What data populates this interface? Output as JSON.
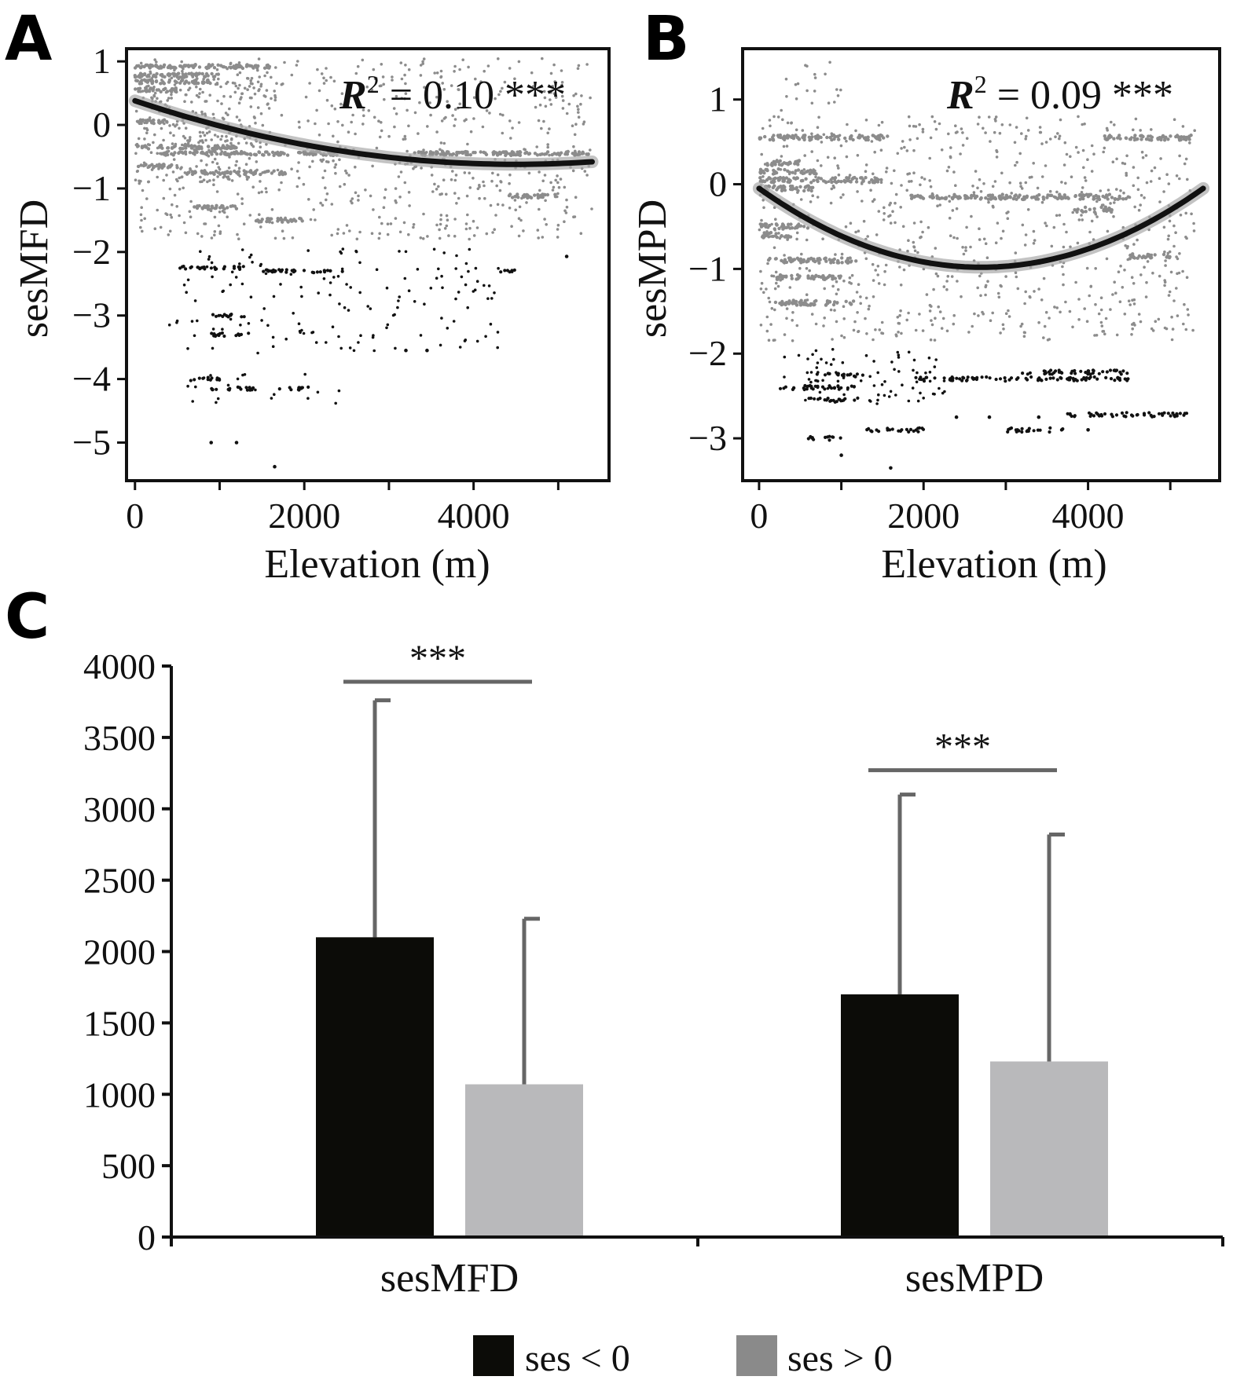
{
  "panels": {
    "a": {
      "letter": "A"
    },
    "b": {
      "letter": "B"
    },
    "c": {
      "letter": "C"
    }
  },
  "colors": {
    "neg": "#0c0c08",
    "pos": "#b9b9bb",
    "scatter_pos": "#8c8c8c",
    "scatter_neg": "#111111",
    "fit": "#111111",
    "ci": "#a9a9a9",
    "error_bar": "#666666",
    "legend_pos": "#8a8a8a"
  },
  "chart_data": [
    {
      "id": "A",
      "type": "scatter",
      "xlabel": "Elevation (m)",
      "ylabel": "sesMFD",
      "xlim": [
        -100,
        5600
      ],
      "ylim": [
        -5.6,
        1.2
      ],
      "xticks": [
        0,
        2000,
        4000
      ],
      "yticks": [
        1,
        0,
        -1,
        -2,
        -3,
        -4,
        -5
      ],
      "ytick_labels": [
        "1",
        "0",
        "−1",
        "−2",
        "−3",
        "−4",
        "−5"
      ],
      "annotation": {
        "r2": "R² = 0.10 ***",
        "r2_prefix": "R",
        "r2_sup": "2",
        "r2_value": " = 0.10 ***"
      },
      "fit": {
        "x_start": 0,
        "x_end": 5400,
        "y_at_start": 0.38,
        "y_at_min": -0.62,
        "x_at_min": 4500
      },
      "bands_pos": [
        {
          "y": 0.92,
          "x0": 0,
          "x1": 1600
        },
        {
          "y": 0.78,
          "x0": 0,
          "x1": 1000
        },
        {
          "y": 0.68,
          "x0": 0,
          "x1": 900
        },
        {
          "y": 0.55,
          "x0": 0,
          "x1": 500
        },
        {
          "y": 0.05,
          "x0": 0,
          "x1": 400
        },
        {
          "y": -0.35,
          "x0": 0,
          "x1": 1200
        },
        {
          "y": -0.45,
          "x0": 300,
          "x1": 2400
        },
        {
          "y": -0.65,
          "x0": 0,
          "x1": 500
        },
        {
          "y": -0.75,
          "x0": 600,
          "x1": 1800
        },
        {
          "y": -0.45,
          "x0": 3300,
          "x1": 5400
        },
        {
          "y": -1.12,
          "x0": 4400,
          "x1": 5000
        },
        {
          "y": -1.3,
          "x0": 700,
          "x1": 1200
        },
        {
          "y": -1.5,
          "x0": 1400,
          "x1": 2000
        }
      ],
      "clusters_pos": [
        {
          "x0": 0,
          "x1": 5400,
          "y0": -1.8,
          "y1": 1.05,
          "n": 700
        },
        {
          "x0": 0,
          "x1": 1500,
          "y0": -0.9,
          "y1": 1.0,
          "n": 250
        }
      ],
      "bands_neg": [
        {
          "y": -2.25,
          "x0": 500,
          "x1": 1300
        },
        {
          "y": -2.3,
          "x0": 1500,
          "x1": 2500
        },
        {
          "y": -3.0,
          "x0": 900,
          "x1": 1300
        },
        {
          "y": -3.3,
          "x0": 900,
          "x1": 1400
        },
        {
          "y": -4.0,
          "x0": 650,
          "x1": 1000
        },
        {
          "y": -4.15,
          "x0": 900,
          "x1": 1400
        },
        {
          "y": -4.15,
          "x0": 1700,
          "x1": 2100
        },
        {
          "y": -2.3,
          "x0": 4300,
          "x1": 4500
        }
      ],
      "clusters_neg": [
        {
          "x0": 400,
          "x1": 4300,
          "y0": -3.6,
          "y1": -1.95,
          "n": 150
        },
        {
          "x0": 600,
          "x1": 2500,
          "y0": -4.4,
          "y1": -3.9,
          "n": 20
        }
      ],
      "singles_neg": [
        [
          900,
          -5.0
        ],
        [
          1200,
          -5.0
        ],
        [
          1650,
          -5.38
        ],
        [
          5100,
          -2.07
        ],
        [
          3200,
          -3.55
        ],
        [
          3450,
          -3.55
        ]
      ]
    },
    {
      "id": "B",
      "type": "scatter",
      "xlabel": "Elevation (m)",
      "ylabel": "sesMPD",
      "xlim": [
        -200,
        5600
      ],
      "ylim": [
        -3.5,
        1.6
      ],
      "xticks": [
        0,
        2000,
        4000
      ],
      "yticks": [
        1,
        0,
        -1,
        -2,
        -3
      ],
      "ytick_labels": [
        "1",
        "0",
        "−1",
        "−2",
        "−3"
      ],
      "annotation": {
        "r2": "R² = 0.09 ***",
        "r2_prefix": "R",
        "r2_sup": "2",
        "r2_value": " = 0.09 ***"
      },
      "fit": {
        "x_start": 0,
        "x_end": 5400,
        "y_at_start": -0.05,
        "y_at_min": -0.98,
        "x_at_min": 2700
      },
      "bands_pos": [
        {
          "y": 0.55,
          "x0": 0,
          "x1": 1600
        },
        {
          "y": 0.25,
          "x0": 0,
          "x1": 500
        },
        {
          "y": 0.15,
          "x0": 0,
          "x1": 700
        },
        {
          "y": 0.05,
          "x0": 0,
          "x1": 1500
        },
        {
          "y": -0.05,
          "x0": 0,
          "x1": 700
        },
        {
          "y": -0.5,
          "x0": 0,
          "x1": 600
        },
        {
          "y": -0.6,
          "x0": 0,
          "x1": 400
        },
        {
          "y": -0.9,
          "x0": 100,
          "x1": 1200
        },
        {
          "y": -1.1,
          "x0": 200,
          "x1": 1000
        },
        {
          "y": -1.4,
          "x0": 200,
          "x1": 1200
        },
        {
          "y": 0.55,
          "x0": 4200,
          "x1": 5300
        },
        {
          "y": -0.15,
          "x0": 1800,
          "x1": 4500
        },
        {
          "y": -0.3,
          "x0": 3800,
          "x1": 4300
        },
        {
          "y": -0.85,
          "x0": 4500,
          "x1": 5000
        }
      ],
      "clusters_pos": [
        {
          "x0": 0,
          "x1": 5300,
          "y0": -1.85,
          "y1": 0.8,
          "n": 800
        },
        {
          "x0": 200,
          "x1": 1000,
          "y0": 0.8,
          "y1": 1.45,
          "n": 20
        }
      ],
      "bands_neg": [
        {
          "y": -2.4,
          "x0": 200,
          "x1": 1200
        },
        {
          "y": -2.25,
          "x0": 700,
          "x1": 1300
        },
        {
          "y": -2.55,
          "x0": 600,
          "x1": 1200
        },
        {
          "y": -2.3,
          "x0": 1900,
          "x1": 4500
        },
        {
          "y": -2.22,
          "x0": 3200,
          "x1": 4500
        },
        {
          "y": -2.72,
          "x0": 3700,
          "x1": 5200
        },
        {
          "y": -2.9,
          "x0": 3000,
          "x1": 3700
        },
        {
          "y": -2.9,
          "x0": 1300,
          "x1": 2000
        },
        {
          "y": -3.0,
          "x0": 600,
          "x1": 1000
        }
      ],
      "clusters_neg": [
        {
          "x0": 300,
          "x1": 2300,
          "y0": -2.6,
          "y1": -1.95,
          "n": 80
        }
      ],
      "singles_neg": [
        [
          1000,
          -3.2
        ],
        [
          1600,
          -3.35
        ],
        [
          2400,
          -2.75
        ],
        [
          2800,
          -2.75
        ],
        [
          3400,
          -2.75
        ],
        [
          4000,
          -2.9
        ]
      ]
    },
    {
      "id": "C",
      "type": "bar",
      "categories": [
        "sesMFD",
        "sesMPD"
      ],
      "ylim": [
        0,
        4000
      ],
      "yticks": [
        0,
        500,
        1000,
        1500,
        2000,
        2500,
        3000,
        3500,
        4000
      ],
      "series": [
        {
          "name": "ses < 0",
          "values": [
            2100,
            1700
          ],
          "error": [
            1660,
            1400
          ]
        },
        {
          "name": "ses > 0",
          "values": [
            1070,
            1230
          ],
          "error": [
            1160,
            1590
          ]
        }
      ],
      "significance": [
        "***",
        "***"
      ],
      "sig_bar_level": [
        3890,
        3270
      ],
      "legend": {
        "position": "bottom"
      }
    }
  ]
}
